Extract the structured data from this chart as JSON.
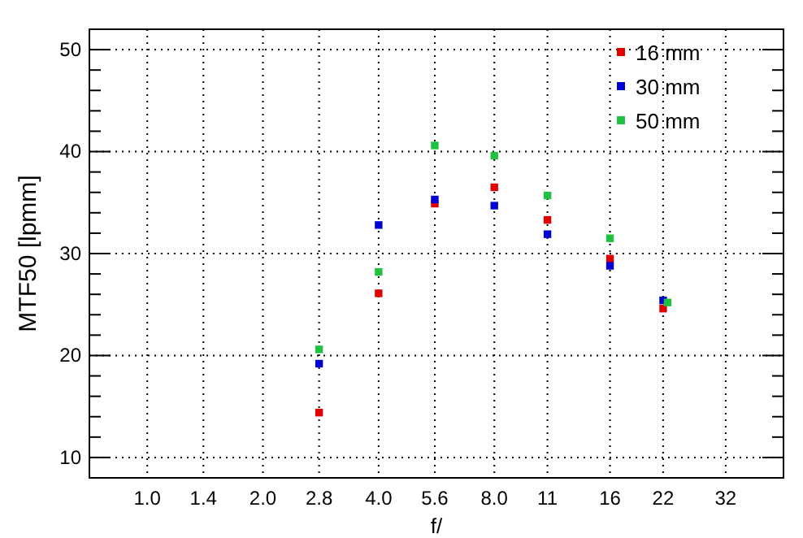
{
  "chart_data": {
    "type": "scatter",
    "xlabel": "f/",
    "ylabel": "MTF50 [lpmm]",
    "log": "x",
    "xlim": [
      0.707,
      45.25
    ],
    "ylim": [
      8,
      52
    ],
    "xticks": [
      {
        "value": 1,
        "label": "1.0"
      },
      1.4,
      {
        "value": 2,
        "label": "2.0"
      },
      2.8,
      {
        "value": 4,
        "label": "4.0"
      },
      5.6,
      {
        "value": 8,
        "label": "8.0"
      },
      11,
      16,
      22,
      32
    ],
    "yticks": [
      10,
      {
        "value": 12,
        "label": null
      },
      {
        "value": 14,
        "label": null
      },
      {
        "value": 16,
        "label": null
      },
      {
        "value": 18,
        "label": null
      },
      20,
      {
        "value": 22,
        "label": null
      },
      {
        "value": 24,
        "label": null
      },
      {
        "value": 26,
        "label": null
      },
      {
        "value": 28,
        "label": null
      },
      30,
      {
        "value": 32,
        "label": null
      },
      {
        "value": 34,
        "label": null
      },
      {
        "value": 36,
        "label": null
      },
      {
        "value": 38,
        "label": null
      },
      40,
      {
        "value": 42,
        "label": null
      },
      {
        "value": 44,
        "label": null
      },
      {
        "value": 46,
        "label": null
      },
      {
        "value": 48,
        "label": null
      },
      50
    ],
    "grid": true,
    "legend": "top right",
    "marker": "square",
    "series": [
      {
        "name": "16 mm",
        "color": "#e00000",
        "x": [
          2.8,
          4,
          5.6,
          8,
          11,
          16,
          22
        ],
        "values": [
          14.4,
          26.1,
          34.9,
          36.5,
          33.3,
          29.5,
          24.6
        ]
      },
      {
        "name": "30 mm",
        "color": "#0000d0",
        "x": [
          2.8,
          4,
          5.6,
          8,
          11,
          16,
          22
        ],
        "values": [
          19.2,
          32.8,
          35.3,
          34.7,
          31.9,
          28.8,
          25.4
        ]
      },
      {
        "name": "50 mm",
        "color": "#20c040",
        "x": [
          2.8,
          4,
          5.6,
          8,
          11,
          16,
          22.6
        ],
        "values": [
          20.6,
          28.2,
          40.6,
          39.6,
          35.7,
          31.5,
          25.2
        ]
      }
    ]
  }
}
